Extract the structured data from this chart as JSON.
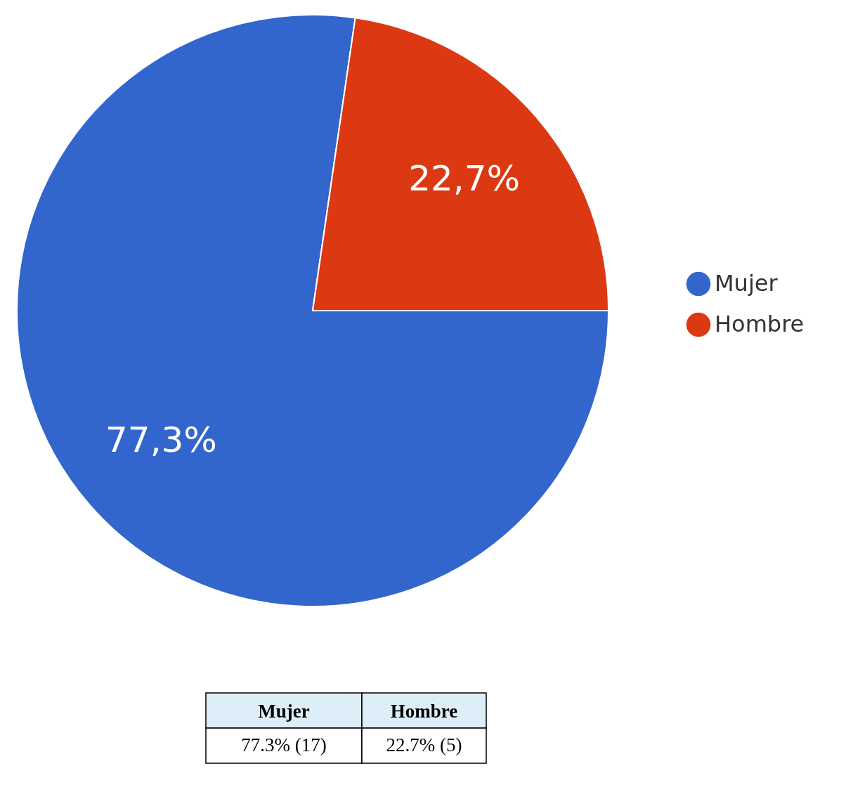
{
  "chart_data": {
    "type": "pie",
    "categories": [
      "Mujer",
      "Hombre"
    ],
    "values": [
      77.3,
      22.7
    ],
    "colors": [
      "#3366cc",
      "#dc3912"
    ],
    "value_labels": [
      "77,3%",
      "22,7%"
    ],
    "legend": "right",
    "annotations": [
      "77.3% (17)",
      "22.7% (5)"
    ]
  }
}
